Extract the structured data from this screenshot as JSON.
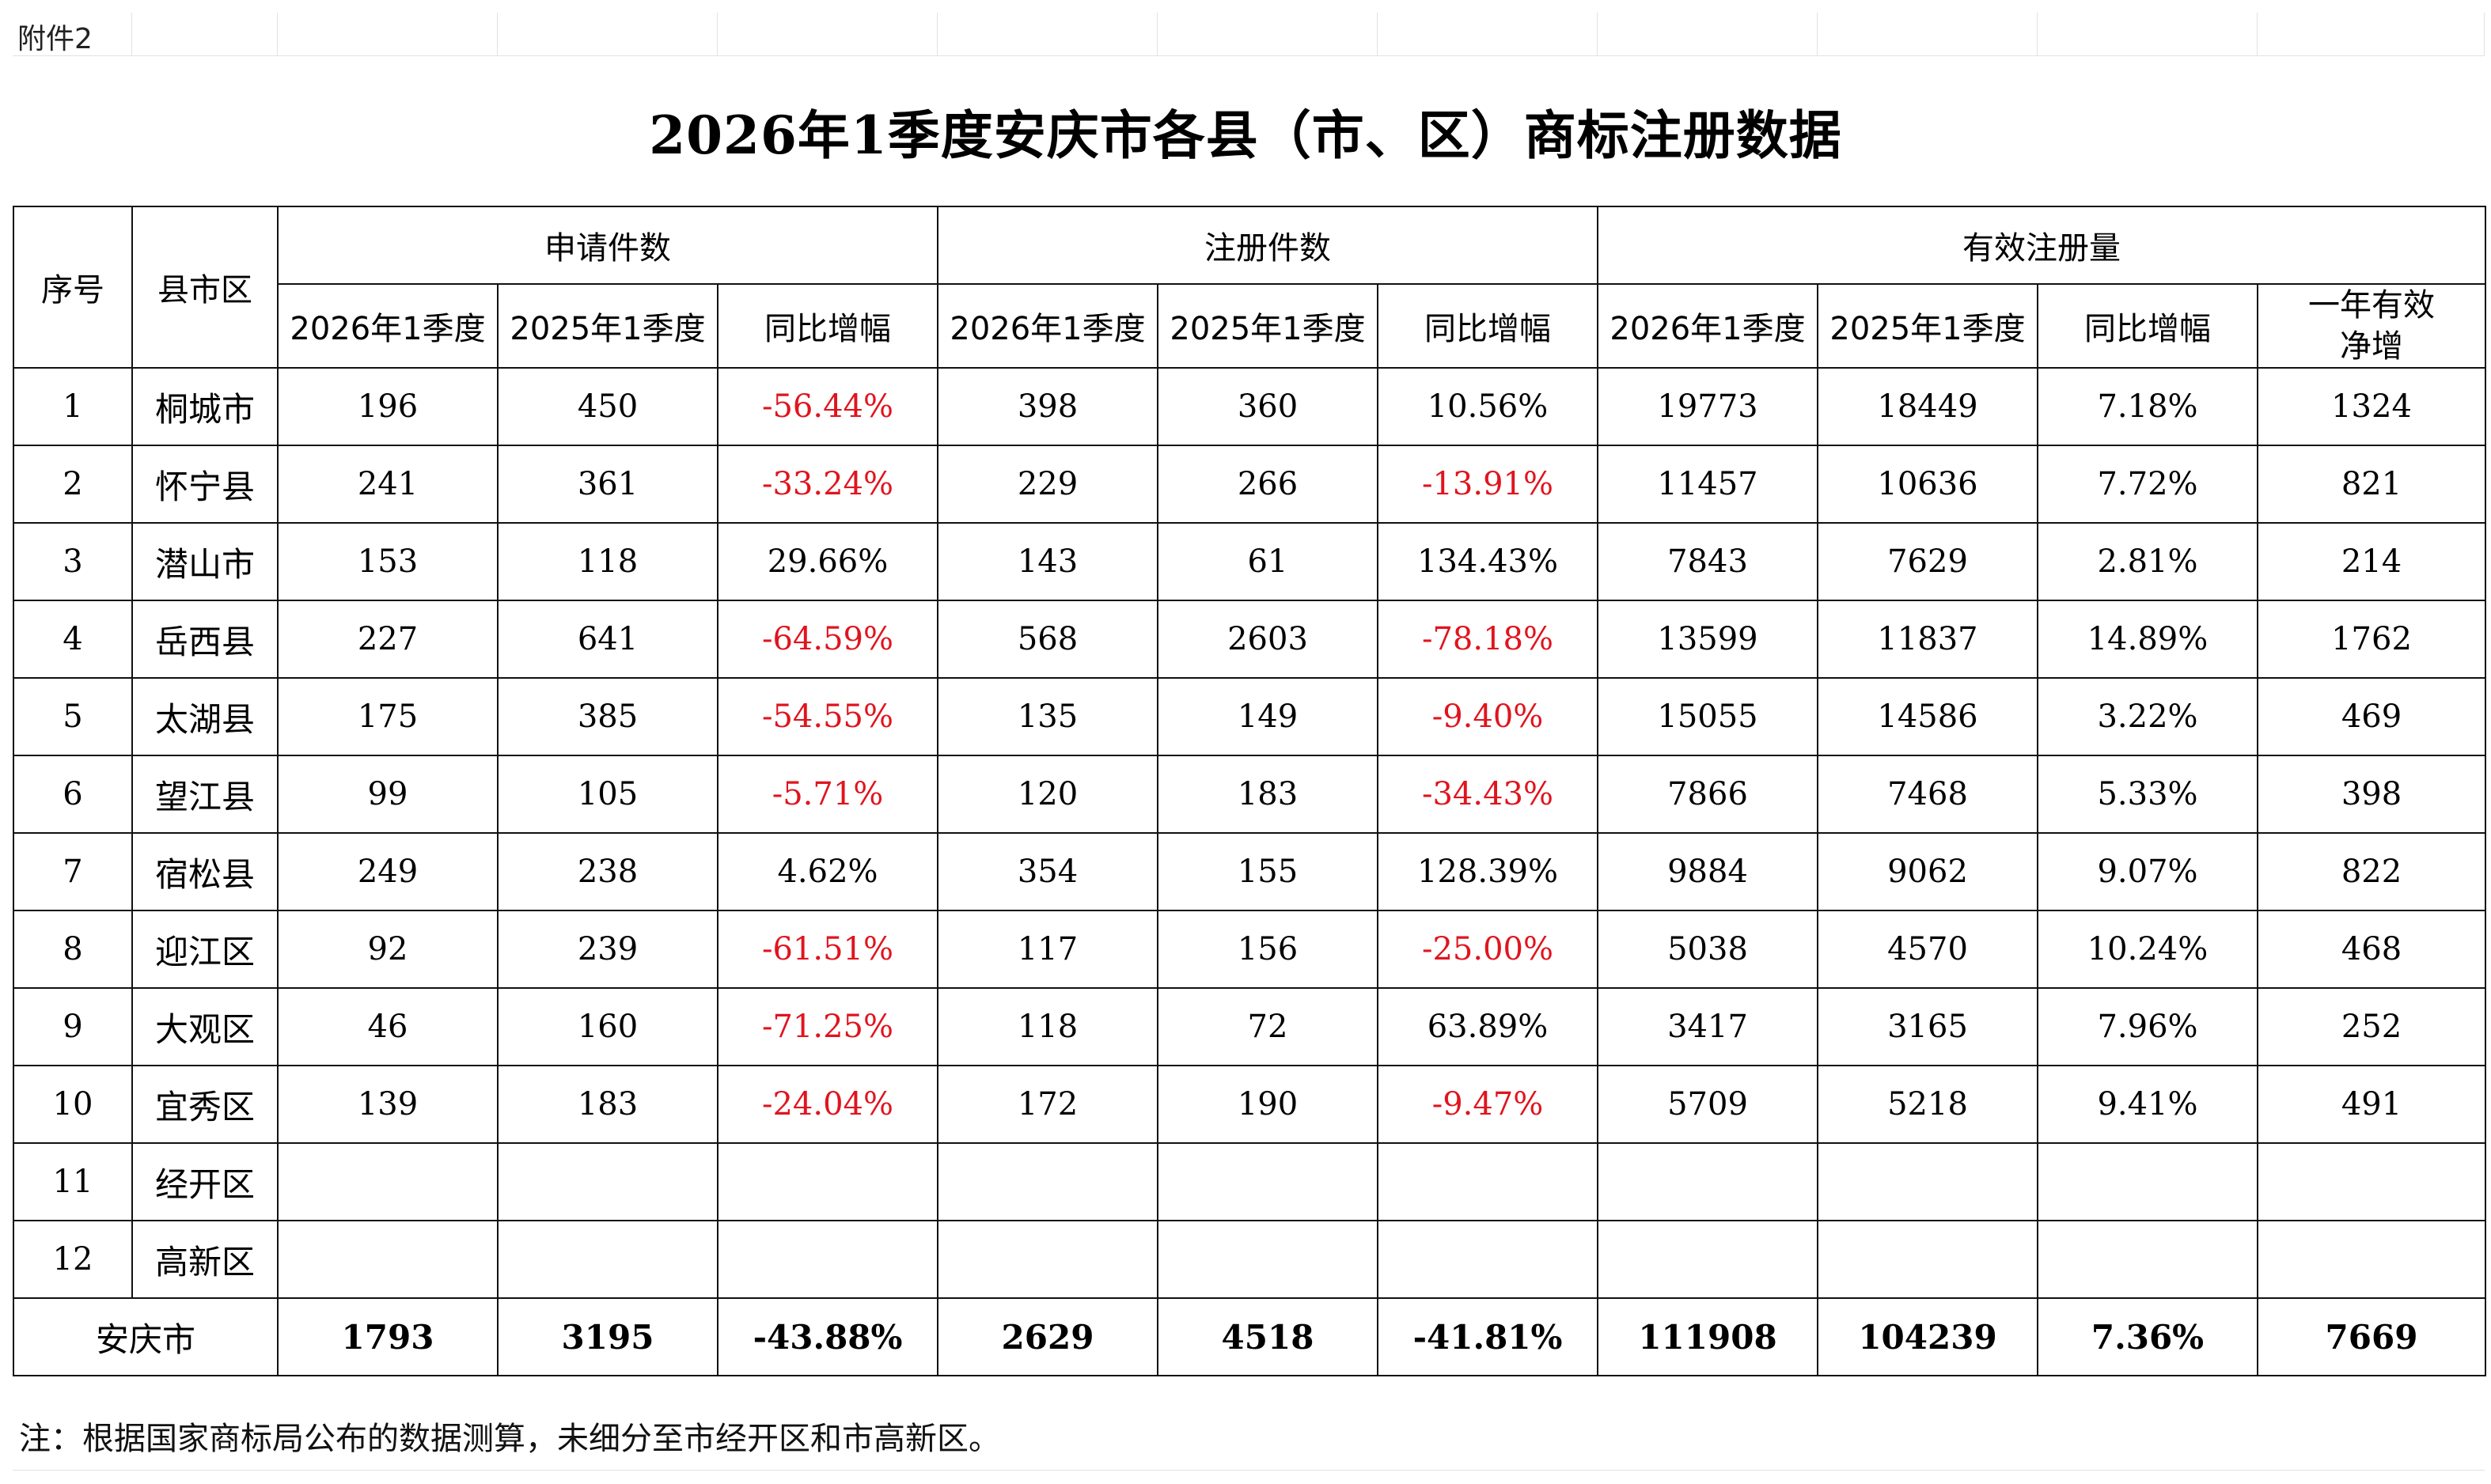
{
  "attachment": "附件2",
  "title": "2026年1季度安庆市各县（市、区）商标注册数据",
  "headers": {
    "seq": "序号",
    "county": "县市区",
    "group_apply": "申请件数",
    "group_register": "注册件数",
    "group_valid": "有效注册量",
    "q2026": "2026年1季度",
    "q2025": "2025年1季度",
    "yoy": "同比增幅",
    "net_line1": "一年有效",
    "net_line2": "净增"
  },
  "rows": [
    {
      "seq": "1",
      "name": "桐城市",
      "a26": "196",
      "a25": "450",
      "ay": "-56.44%",
      "r26": "398",
      "r25": "360",
      "ry": "10.56%",
      "v26": "19773",
      "v25": "18449",
      "vy": "7.18%",
      "net": "1324"
    },
    {
      "seq": "2",
      "name": "怀宁县",
      "a26": "241",
      "a25": "361",
      "ay": "-33.24%",
      "r26": "229",
      "r25": "266",
      "ry": "-13.91%",
      "v26": "11457",
      "v25": "10636",
      "vy": "7.72%",
      "net": "821"
    },
    {
      "seq": "3",
      "name": "潜山市",
      "a26": "153",
      "a25": "118",
      "ay": "29.66%",
      "r26": "143",
      "r25": "61",
      "ry": "134.43%",
      "v26": "7843",
      "v25": "7629",
      "vy": "2.81%",
      "net": "214"
    },
    {
      "seq": "4",
      "name": "岳西县",
      "a26": "227",
      "a25": "641",
      "ay": "-64.59%",
      "r26": "568",
      "r25": "2603",
      "ry": "-78.18%",
      "v26": "13599",
      "v25": "11837",
      "vy": "14.89%",
      "net": "1762"
    },
    {
      "seq": "5",
      "name": "太湖县",
      "a26": "175",
      "a25": "385",
      "ay": "-54.55%",
      "r26": "135",
      "r25": "149",
      "ry": "-9.40%",
      "v26": "15055",
      "v25": "14586",
      "vy": "3.22%",
      "net": "469"
    },
    {
      "seq": "6",
      "name": "望江县",
      "a26": "99",
      "a25": "105",
      "ay": "-5.71%",
      "r26": "120",
      "r25": "183",
      "ry": "-34.43%",
      "v26": "7866",
      "v25": "7468",
      "vy": "5.33%",
      "net": "398"
    },
    {
      "seq": "7",
      "name": "宿松县",
      "a26": "249",
      "a25": "238",
      "ay": "4.62%",
      "r26": "354",
      "r25": "155",
      "ry": "128.39%",
      "v26": "9884",
      "v25": "9062",
      "vy": "9.07%",
      "net": "822"
    },
    {
      "seq": "8",
      "name": "迎江区",
      "a26": "92",
      "a25": "239",
      "ay": "-61.51%",
      "r26": "117",
      "r25": "156",
      "ry": "-25.00%",
      "v26": "5038",
      "v25": "4570",
      "vy": "10.24%",
      "net": "468"
    },
    {
      "seq": "9",
      "name": "大观区",
      "a26": "46",
      "a25": "160",
      "ay": "-71.25%",
      "r26": "118",
      "r25": "72",
      "ry": "63.89%",
      "v26": "3417",
      "v25": "3165",
      "vy": "7.96%",
      "net": "252"
    },
    {
      "seq": "10",
      "name": "宜秀区",
      "a26": "139",
      "a25": "183",
      "ay": "-24.04%",
      "r26": "172",
      "r25": "190",
      "ry": "-9.47%",
      "v26": "5709",
      "v25": "5218",
      "vy": "9.41%",
      "net": "491"
    },
    {
      "seq": "11",
      "name": "经开区",
      "a26": "",
      "a25": "",
      "ay": "",
      "r26": "",
      "r25": "",
      "ry": "",
      "v26": "",
      "v25": "",
      "vy": "",
      "net": ""
    },
    {
      "seq": "12",
      "name": "高新区",
      "a26": "",
      "a25": "",
      "ay": "",
      "r26": "",
      "r25": "",
      "ry": "",
      "v26": "",
      "v25": "",
      "vy": "",
      "net": ""
    }
  ],
  "total": {
    "name": "安庆市",
    "a26": "1793",
    "a25": "3195",
    "ay": "-43.88%",
    "r26": "2629",
    "r25": "4518",
    "ry": "-41.81%",
    "v26": "111908",
    "v25": "104239",
    "vy": "7.36%",
    "net": "7669"
  },
  "note": "注：根据国家商标局公布的数据测算，未细分至市经开区和市高新区。",
  "colors": {
    "negative": "#e0141e",
    "border": "#111111"
  }
}
